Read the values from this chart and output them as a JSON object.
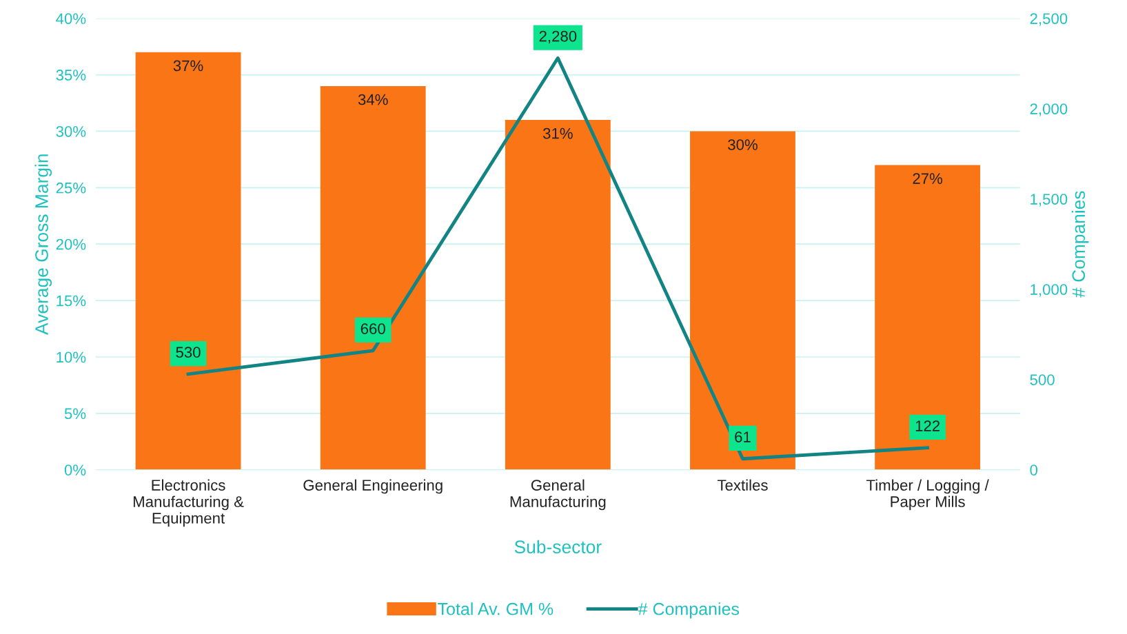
{
  "chart_data": {
    "type": "bar",
    "xlabel": "Sub-sector",
    "ylabel": "Average Gross Margin",
    "y2label": "# Companies",
    "categories": [
      "Electronics\nManufacturing &\nEquipment",
      "General Engineering",
      "General\nManufacturing",
      "Textiles",
      "Timber / Logging /\nPaper Mills"
    ],
    "series": [
      {
        "name": "Total Av. GM %",
        "color": "#fa7516",
        "values": [
          37,
          34,
          31,
          30,
          27
        ],
        "value_labels": [
          "37%",
          "34%",
          "31%",
          "30%",
          "27%"
        ]
      },
      {
        "name": "# Companies",
        "type": "line",
        "axis": "y2",
        "color": "#138484",
        "values": [
          530,
          660,
          2280,
          61,
          122
        ],
        "value_labels": [
          "530",
          "660",
          "2,280",
          "61",
          "122"
        ]
      }
    ],
    "ylim": [
      0,
      40
    ],
    "yticks": [
      {
        "value": 0,
        "label": "0%"
      },
      {
        "value": 5,
        "label": "5%"
      },
      {
        "value": 10,
        "label": "10%"
      },
      {
        "value": 15,
        "label": "15%"
      },
      {
        "value": 20,
        "label": "20%"
      },
      {
        "value": 25,
        "label": "25%"
      },
      {
        "value": 30,
        "label": "30%"
      },
      {
        "value": 35,
        "label": "35%"
      },
      {
        "value": 40,
        "label": "40%"
      }
    ],
    "y2lim": [
      0,
      2500
    ],
    "y2ticks": [
      0,
      {
        "value": 500,
        "label": "500"
      },
      {
        "value": 1000,
        "label": "1,000"
      },
      {
        "value": 1500,
        "label": "1,500"
      },
      {
        "value": 2000,
        "label": "2,000"
      },
      {
        "value": 2500,
        "label": "2,500"
      }
    ],
    "grid": "y",
    "legend": "bottom",
    "marker": "none",
    "line_style": "solid"
  }
}
